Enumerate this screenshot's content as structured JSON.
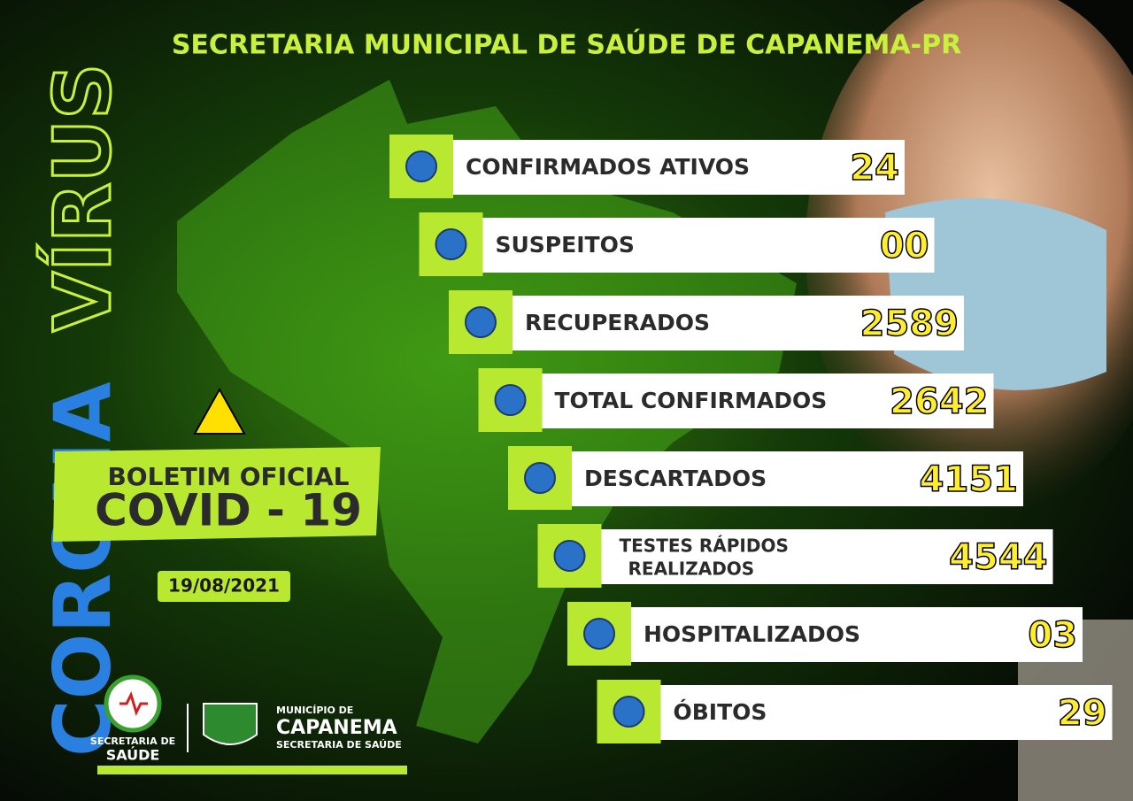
{
  "header": {
    "title": "SECRETARIA MUNICIPAL DE SAÚDE DE CAPANEMA-PR"
  },
  "side": {
    "word1": "CORONA",
    "word2": "VÍRUS"
  },
  "bulletin": {
    "line1": "BOLETIM OFICIAL",
    "line2": "COVID - 19",
    "date": "19/08/2021"
  },
  "stats": [
    {
      "label": "CONFIRMADOS ATIVOS",
      "value": "24"
    },
    {
      "label": "SUSPEITOS",
      "value": "00"
    },
    {
      "label": "RECUPERADOS",
      "value": "2589"
    },
    {
      "label": "TOTAL CONFIRMADOS",
      "value": "2642"
    },
    {
      "label": "DESCARTADOS",
      "value": "4151"
    },
    {
      "label": [
        "TESTES RÁPIDOS",
        "REALIZADOS"
      ],
      "value": "4544"
    },
    {
      "label": "HOSPITALIZADOS",
      "value": "03"
    },
    {
      "label": "ÓBITOS",
      "value": "29"
    }
  ],
  "logos": {
    "health_line1": "SECRETARIA DE",
    "health_line2": "SAÚDE",
    "city_line1": "MUNICÍPIO DE",
    "city_line2": "CAPANEMA",
    "city_line3": "SECRETARIA DE SAÚDE"
  }
}
